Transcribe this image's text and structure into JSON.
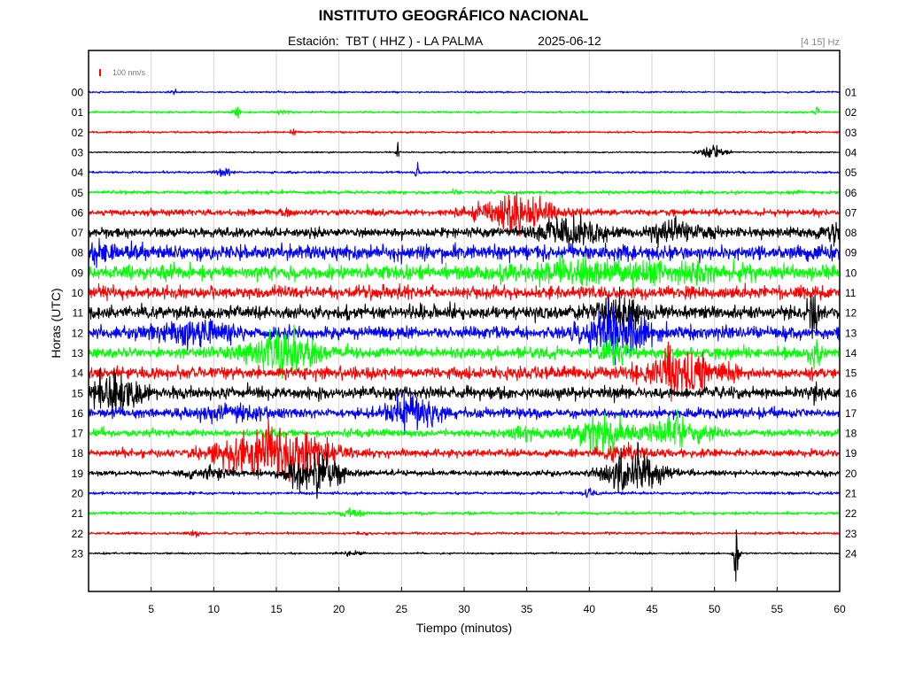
{
  "chart_data": {
    "type": "line",
    "title": "INSTITUTO GEOGRÁFICO NACIONAL",
    "station_label": "Estación:  TBT ( HHZ ) - LA PALMA",
    "date": "2025-06-12",
    "filter": "[4 15] Hz",
    "scale_label": "100 nm/s",
    "xlabel": "Tiempo (minutos)",
    "ylabel": "Horas (UTC)",
    "xlim": [
      0,
      60
    ],
    "x_ticks": [
      "5",
      "10",
      "15",
      "20",
      "25",
      "30",
      "35",
      "40",
      "45",
      "50",
      "55",
      "60"
    ],
    "left_hour_labels": [
      "00",
      "01",
      "02",
      "03",
      "04",
      "05",
      "06",
      "07",
      "08",
      "09",
      "10",
      "11",
      "12",
      "13",
      "14",
      "15",
      "16",
      "17",
      "18",
      "19",
      "20",
      "21",
      "22",
      "23"
    ],
    "right_hour_labels": [
      "01",
      "02",
      "03",
      "04",
      "05",
      "06",
      "07",
      "08",
      "09",
      "10",
      "11",
      "12",
      "13",
      "14",
      "15",
      "16",
      "17",
      "18",
      "19",
      "20",
      "21",
      "22",
      "23",
      "24"
    ],
    "grid": true,
    "colors": [
      "#0000ff",
      "#00ff00",
      "#ff0000",
      "#000000"
    ],
    "series": [
      {
        "hour": "00",
        "color": "#0000ff",
        "noise": 0.8,
        "events": [
          {
            "t": 6.8,
            "a": 2,
            "d": 0.3
          }
        ]
      },
      {
        "hour": "01",
        "color": "#00ff00",
        "noise": 0.9,
        "events": [
          {
            "t": 11.8,
            "a": 7,
            "d": 0.2
          },
          {
            "t": 15.5,
            "a": 3,
            "d": 0.3
          },
          {
            "t": 58.2,
            "a": 8,
            "d": 0.1
          }
        ]
      },
      {
        "hour": "02",
        "color": "#ff0000",
        "noise": 0.9,
        "events": [
          {
            "t": 16.4,
            "a": 3,
            "d": 0.2
          }
        ]
      },
      {
        "hour": "03",
        "color": "#000000",
        "noise": 0.7,
        "events": [
          {
            "t": 24.7,
            "a": 8,
            "d": 0.1
          },
          {
            "t": 49.8,
            "a": 5,
            "d": 0.8
          }
        ]
      },
      {
        "hour": "04",
        "color": "#0000ff",
        "noise": 1.0,
        "events": [
          {
            "t": 10.8,
            "a": 3,
            "d": 0.6
          },
          {
            "t": 26.3,
            "a": 12,
            "d": 0.1
          }
        ]
      },
      {
        "hour": "05",
        "color": "#00ff00",
        "noise": 1.6,
        "events": [
          {
            "t": 29.5,
            "a": 3,
            "d": 0.3
          }
        ]
      },
      {
        "hour": "06",
        "color": "#ff0000",
        "noise": 3.0,
        "events": [
          {
            "t": 34.2,
            "a": 17,
            "d": 2.0
          },
          {
            "t": 16.0,
            "a": 5,
            "d": 0.2
          }
        ]
      },
      {
        "hour": "07",
        "color": "#000000",
        "noise": 4.5,
        "events": [
          {
            "t": 38.8,
            "a": 13,
            "d": 1.6
          },
          {
            "t": 46.8,
            "a": 10,
            "d": 1.6
          },
          {
            "t": 59.6,
            "a": 9,
            "d": 0.6
          }
        ]
      },
      {
        "hour": "08",
        "color": "#0000ff",
        "noise": 7.0,
        "events": [
          {
            "t": 0.4,
            "a": 10,
            "d": 1.0
          }
        ]
      },
      {
        "hour": "09",
        "color": "#00ff00",
        "noise": 6.5,
        "events": [
          {
            "t": 42.0,
            "a": 9,
            "d": 5.0
          }
        ]
      },
      {
        "hour": "10",
        "color": "#ff0000",
        "noise": 6.0,
        "events": []
      },
      {
        "hour": "11",
        "color": "#000000",
        "noise": 6.0,
        "events": [
          {
            "t": 42.0,
            "a": 16,
            "d": 1.4
          },
          {
            "t": 57.8,
            "a": 20,
            "d": 0.3
          }
        ]
      },
      {
        "hour": "12",
        "color": "#0000ff",
        "noise": 6.0,
        "events": [
          {
            "t": 42.3,
            "a": 24,
            "d": 1.6
          },
          {
            "t": 8.5,
            "a": 9,
            "d": 2.0
          }
        ]
      },
      {
        "hour": "13",
        "color": "#00ff00",
        "noise": 5.0,
        "events": [
          {
            "t": 15.6,
            "a": 20,
            "d": 1.8
          },
          {
            "t": 42.0,
            "a": 10,
            "d": 0.8
          },
          {
            "t": 58.0,
            "a": 16,
            "d": 0.3
          }
        ]
      },
      {
        "hour": "14",
        "color": "#ff0000",
        "noise": 5.5,
        "events": [
          {
            "t": 47.6,
            "a": 20,
            "d": 1.8
          }
        ]
      },
      {
        "hour": "15",
        "color": "#000000",
        "noise": 5.5,
        "events": [
          {
            "t": 2.0,
            "a": 16,
            "d": 1.4
          },
          {
            "t": 58.2,
            "a": 8,
            "d": 0.3
          }
        ]
      },
      {
        "hour": "16",
        "color": "#0000ff",
        "noise": 4.5,
        "events": [
          {
            "t": 26.0,
            "a": 15,
            "d": 1.4
          },
          {
            "t": 11.0,
            "a": 6,
            "d": 2.0
          }
        ]
      },
      {
        "hour": "17",
        "color": "#00ff00",
        "noise": 3.5,
        "events": [
          {
            "t": 40.8,
            "a": 18,
            "d": 1.6
          },
          {
            "t": 47.0,
            "a": 14,
            "d": 1.6
          },
          {
            "t": 35.0,
            "a": 6,
            "d": 1.0
          }
        ]
      },
      {
        "hour": "18",
        "color": "#ff0000",
        "noise": 3.5,
        "events": [
          {
            "t": 12.8,
            "a": 16,
            "d": 2.2
          },
          {
            "t": 16.5,
            "a": 18,
            "d": 2.0
          },
          {
            "t": 42.5,
            "a": 6,
            "d": 1.5
          }
        ]
      },
      {
        "hour": "19",
        "color": "#000000",
        "noise": 2.5,
        "events": [
          {
            "t": 18.1,
            "a": 20,
            "d": 1.4
          },
          {
            "t": 43.6,
            "a": 20,
            "d": 1.6
          },
          {
            "t": 10.0,
            "a": 5,
            "d": 1.5
          }
        ]
      },
      {
        "hour": "20",
        "color": "#0000ff",
        "noise": 1.3,
        "events": [
          {
            "t": 40.0,
            "a": 3,
            "d": 0.4
          }
        ]
      },
      {
        "hour": "21",
        "color": "#00ff00",
        "noise": 1.3,
        "events": [
          {
            "t": 21.0,
            "a": 3,
            "d": 0.8
          }
        ]
      },
      {
        "hour": "22",
        "color": "#ff0000",
        "noise": 1.2,
        "events": [
          {
            "t": 8.5,
            "a": 3,
            "d": 0.3
          }
        ]
      },
      {
        "hour": "23",
        "color": "#000000",
        "noise": 0.8,
        "events": [
          {
            "t": 21.0,
            "a": 2.5,
            "d": 0.6
          },
          {
            "t": 51.7,
            "a": 36,
            "d": 0.15
          }
        ]
      }
    ]
  }
}
